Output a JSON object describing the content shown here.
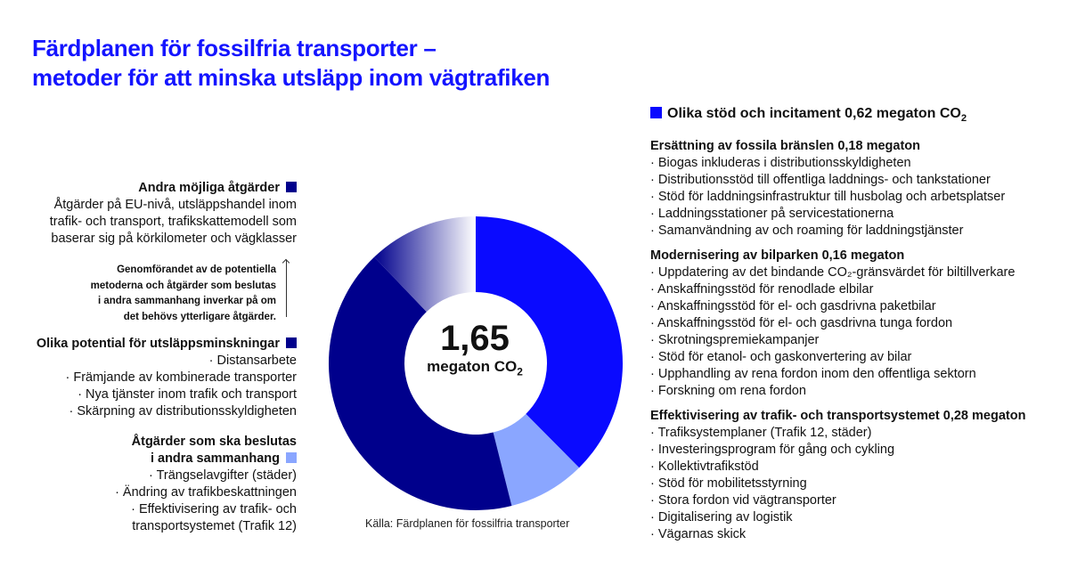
{
  "title": {
    "line1": "Färdplanen för fossilfria transporter –",
    "line2": "metoder för att minska utsläpp inom vägtrafiken"
  },
  "left": {
    "other": {
      "heading": "Andra möjliga åtgärder",
      "lines": [
        "Åtgärder på EU-nivå, utsläppshandel inom",
        "trafik- och transport, trafikskattemodell som",
        "baserar sig på körkilometer och vägklasser"
      ]
    },
    "note": [
      "Genomförandet av de potentiella",
      "metoderna och åtgärder som beslutas",
      "i andra sammanhang inverkar på om",
      "det behövs ytterligare åtgärder."
    ],
    "potential": {
      "heading": "Olika potential för utsläppsminskningar",
      "items": [
        "· Distansarbete",
        "· Främjande av kombinerade transporter",
        "· Nya tjänster inom trafik och transport",
        "· Skärpning av distributionsskyldigheten"
      ]
    },
    "decided": {
      "heading1": "Åtgärder som ska beslutas",
      "heading2": "i andra sammanhang",
      "items": [
        "· Trängselavgifter (städer)",
        "· Ändring av trafikbeskattningen",
        "· Effektivisering av trafik- och",
        "transportsystemet (Trafik 12)"
      ]
    }
  },
  "right": {
    "main": "Olika stöd och incitament 0,62 megaton CO",
    "main_sub": "2",
    "groups": [
      {
        "heading": "Ersättning av fossila bränslen 0,18 megaton",
        "items": [
          "· Biogas inkluderas i distributionsskyldigheten",
          "· Distributionsstöd till offentliga laddnings- och tankstationer",
          "· Stöd för laddningsinfrastruktur till husbolag och arbetsplatser",
          "· Laddningsstationer på servicestationerna",
          "· Samanvändning av och roaming för laddningstjänster"
        ]
      },
      {
        "heading": "Modernisering av bilparken 0,16 megaton",
        "items": [
          "· Uppdatering av det bindande CO₂-gränsvärdet för biltillverkare",
          "· Anskaffningsstöd för renodlade elbilar",
          "· Anskaffningsstöd för el- och gasdrivna paketbilar",
          "· Anskaffningsstöd för el- och gasdrivna tunga fordon",
          "· Skrotningspremiekampanjer",
          "· Stöd för etanol- och gaskonvertering av bilar",
          "· Upphandling av rena fordon inom den offentliga sektorn",
          "· Forskning om rena fordon"
        ]
      },
      {
        "heading": "Effektivisering av trafik- och transportsystemet 0,28 megaton",
        "items": [
          "· Trafiksystemplaner (Trafik 12, städer)",
          "· Investeringsprogram för gång och cykling",
          "· Kollektivtrafikstöd",
          "· Stöd för mobilitetsstyrning",
          "· Stora fordon vid vägtransporter",
          "· Digitalisering av logistik",
          "· Vägarnas skick"
        ]
      }
    ]
  },
  "center": {
    "value": "1,65",
    "unit": "megaton CO",
    "unit_sub": "2"
  },
  "source": "Källa: Färdplanen för fossilfria transporter",
  "colors": {
    "bright": "#0a0aff",
    "navy": "#00008c",
    "light": "#8aa6ff",
    "title": "#1414ff"
  },
  "chart_data": {
    "type": "pie",
    "style": "donut",
    "title": "1,65 megaton CO2",
    "total": 1.65,
    "slices": [
      {
        "label": "Olika stöd och incitament",
        "value": 0.62,
        "color": "#0a0aff"
      },
      {
        "label": "Åtgärder som ska beslutas i andra sammanhang",
        "value": 0.14,
        "color": "#8aa6ff"
      },
      {
        "label": "Olika potential för utsläppsminskningar",
        "value": 0.69,
        "color": "#00008c"
      },
      {
        "label": "Andra möjliga åtgärder",
        "value": 0.2,
        "color": "gradient"
      }
    ]
  }
}
